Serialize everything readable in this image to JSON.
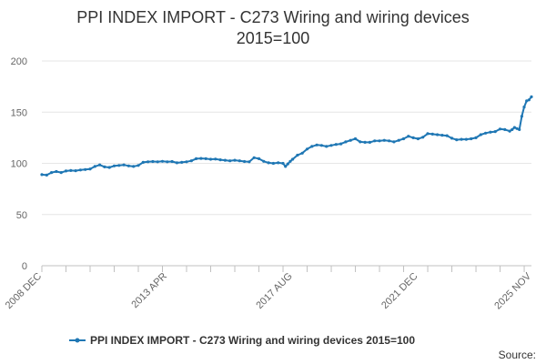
{
  "chart_data": {
    "type": "line",
    "title": "PPI INDEX IMPORT - C273 Wiring and wiring devices",
    "subtitle": "2015=100",
    "xlabel": "",
    "ylabel": "",
    "ylim": [
      0,
      200
    ],
    "yticks": [
      0,
      50,
      100,
      150,
      200
    ],
    "xlim": [
      "2008-12",
      "2025-11"
    ],
    "xticks": [
      "2008 DEC",
      "2013 APR",
      "2017 AUG",
      "2021 DEC",
      "2025 NOV"
    ],
    "grid": "horizontal",
    "legend": "bottom",
    "series": [
      {
        "name": "PPI INDEX IMPORT - C273 Wiring and wiring devices 2015=100",
        "color": "#1f77b4",
        "points": [
          [
            "2008-12",
            89
          ],
          [
            "2009-02",
            88.5
          ],
          [
            "2009-04",
            91
          ],
          [
            "2009-06",
            92
          ],
          [
            "2009-08",
            91
          ],
          [
            "2009-10",
            92.5
          ],
          [
            "2009-12",
            93
          ],
          [
            "2010-02",
            92.8
          ],
          [
            "2010-04",
            93.5
          ],
          [
            "2010-06",
            94
          ],
          [
            "2010-08",
            94.5
          ],
          [
            "2010-10",
            97
          ],
          [
            "2010-12",
            98.5
          ],
          [
            "2011-02",
            96.5
          ],
          [
            "2011-04",
            96
          ],
          [
            "2011-06",
            97.5
          ],
          [
            "2011-08",
            98
          ],
          [
            "2011-10",
            98.5
          ],
          [
            "2011-12",
            97.5
          ],
          [
            "2012-02",
            97
          ],
          [
            "2012-04",
            98
          ],
          [
            "2012-06",
            101
          ],
          [
            "2012-08",
            101.5
          ],
          [
            "2012-10",
            101.8
          ],
          [
            "2012-12",
            101.5
          ],
          [
            "2013-02",
            102
          ],
          [
            "2013-04",
            101.5
          ],
          [
            "2013-06",
            101.8
          ],
          [
            "2013-08",
            100.5
          ],
          [
            "2013-10",
            101
          ],
          [
            "2013-12",
            101.5
          ],
          [
            "2014-02",
            102.5
          ],
          [
            "2014-04",
            104.5
          ],
          [
            "2014-06",
            104.8
          ],
          [
            "2014-08",
            104.5
          ],
          [
            "2014-10",
            104
          ],
          [
            "2014-12",
            104.2
          ],
          [
            "2015-02",
            103.5
          ],
          [
            "2015-04",
            103
          ],
          [
            "2015-06",
            102.5
          ],
          [
            "2015-08",
            103
          ],
          [
            "2015-10",
            102.5
          ],
          [
            "2015-12",
            101.8
          ],
          [
            "2016-02",
            101.5
          ],
          [
            "2016-04",
            105.5
          ],
          [
            "2016-06",
            104.5
          ],
          [
            "2016-08",
            102
          ],
          [
            "2016-10",
            100.5
          ],
          [
            "2016-12",
            100
          ],
          [
            "2017-02",
            100.5
          ],
          [
            "2017-04",
            100
          ],
          [
            "2017-05",
            97
          ],
          [
            "2017-06",
            99.5
          ],
          [
            "2017-07",
            102
          ],
          [
            "2017-08",
            104
          ],
          [
            "2017-10",
            108
          ],
          [
            "2017-12",
            110
          ],
          [
            "2018-02",
            114
          ],
          [
            "2018-04",
            116.5
          ],
          [
            "2018-06",
            118
          ],
          [
            "2018-08",
            117.5
          ],
          [
            "2018-10",
            116.5
          ],
          [
            "2018-12",
            117.5
          ],
          [
            "2019-02",
            118.5
          ],
          [
            "2019-04",
            119
          ],
          [
            "2019-06",
            121
          ],
          [
            "2019-08",
            122.5
          ],
          [
            "2019-10",
            124
          ],
          [
            "2019-12",
            121
          ],
          [
            "2020-02",
            120.5
          ],
          [
            "2020-04",
            120.5
          ],
          [
            "2020-06",
            122
          ],
          [
            "2020-08",
            122
          ],
          [
            "2020-10",
            122.5
          ],
          [
            "2020-12",
            122
          ],
          [
            "2021-02",
            121
          ],
          [
            "2021-04",
            122.5
          ],
          [
            "2021-06",
            124
          ],
          [
            "2021-08",
            126.5
          ],
          [
            "2021-10",
            125
          ],
          [
            "2021-12",
            124
          ],
          [
            "2022-02",
            125.5
          ],
          [
            "2022-04",
            129
          ],
          [
            "2022-06",
            128.5
          ],
          [
            "2022-08",
            128
          ],
          [
            "2022-10",
            127.5
          ],
          [
            "2022-12",
            127
          ],
          [
            "2023-02",
            124.5
          ],
          [
            "2023-04",
            123
          ],
          [
            "2023-06",
            123.5
          ],
          [
            "2023-08",
            123.5
          ],
          [
            "2023-10",
            124
          ],
          [
            "2023-12",
            125
          ],
          [
            "2024-02",
            128
          ],
          [
            "2024-04",
            129.5
          ],
          [
            "2024-06",
            130.5
          ],
          [
            "2024-08",
            131
          ],
          [
            "2024-10",
            133.5
          ],
          [
            "2024-12",
            133
          ],
          [
            "2025-02",
            131.5
          ],
          [
            "2025-03",
            133
          ],
          [
            "2025-04",
            135
          ],
          [
            "2025-05",
            134
          ],
          [
            "2025-06",
            133
          ],
          [
            "2025-07",
            146
          ],
          [
            "2025-08",
            155
          ],
          [
            "2025-09",
            161
          ],
          [
            "2025-10",
            162
          ],
          [
            "2025-11",
            165
          ]
        ]
      }
    ]
  },
  "footer": {
    "source_label": "Source:"
  }
}
